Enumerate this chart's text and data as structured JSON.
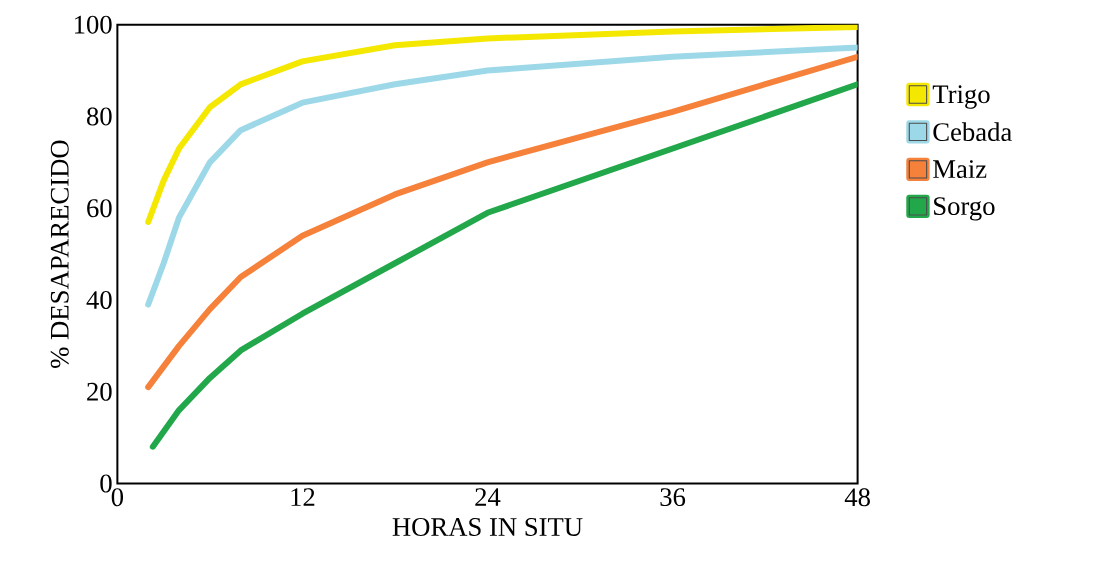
{
  "chart_data": {
    "type": "line",
    "xlabel": "HORAS IN SITU",
    "ylabel": "% DESAPARECIDO",
    "xlim": [
      0,
      48
    ],
    "ylim": [
      0,
      100
    ],
    "xticks": [
      0,
      12,
      24,
      36,
      48
    ],
    "yticks": [
      0,
      20,
      40,
      60,
      80,
      100
    ],
    "grid": false,
    "legend": "right",
    "marker": "none",
    "line_style": "solid",
    "series": [
      {
        "name": "Trigo",
        "color": "#f5e800",
        "x": [
          2,
          3,
          4,
          6,
          8,
          12,
          18,
          24,
          36,
          48
        ],
        "values": [
          57,
          66,
          73,
          82,
          87,
          92,
          95.5,
          97,
          98.5,
          99.5
        ]
      },
      {
        "name": "Cebada",
        "color": "#9dd8e8",
        "x": [
          2,
          3,
          4,
          6,
          8,
          12,
          18,
          24,
          36,
          48
        ],
        "values": [
          39,
          48,
          58,
          70,
          77,
          83,
          87,
          90,
          93,
          95
        ]
      },
      {
        "name": "Maiz",
        "color": "#f5813a",
        "x": [
          2,
          4,
          6,
          8,
          12,
          18,
          24,
          36,
          48
        ],
        "values": [
          21,
          30,
          38,
          45,
          54,
          63,
          70,
          81,
          93
        ]
      },
      {
        "name": "Sorgo",
        "color": "#22a84a",
        "x": [
          2.3,
          4,
          6,
          8,
          12,
          18,
          24,
          36,
          48
        ],
        "values": [
          8,
          16,
          23,
          29,
          37,
          48,
          59,
          73,
          87
        ]
      }
    ]
  }
}
